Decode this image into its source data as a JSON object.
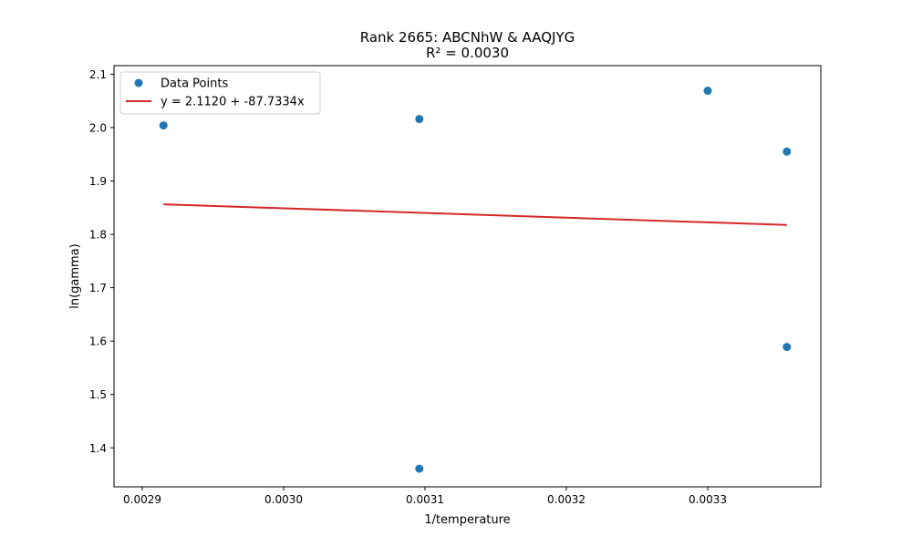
{
  "chart_data": {
    "type": "scatter",
    "title": "Rank 2665: ABCNhW & AAQJYG",
    "subtitle": "R² = 0.0030",
    "xlabel": "1/temperature",
    "ylabel": "ln(gamma)",
    "xlim": [
      0.00288,
      0.00338
    ],
    "ylim": [
      1.327,
      2.116
    ],
    "xticks": [
      0.0029,
      0.003,
      0.0031,
      0.0032,
      0.0033
    ],
    "xtick_labels": [
      "0.0029",
      "0.0030",
      "0.0031",
      "0.0032",
      "0.0033"
    ],
    "yticks": [
      1.4,
      1.5,
      1.6,
      1.7,
      1.8,
      1.9,
      2.0,
      2.1
    ],
    "ytick_labels": [
      "1.4",
      "1.5",
      "1.6",
      "1.7",
      "1.8",
      "1.9",
      "2.0",
      "2.1"
    ],
    "grid": false,
    "legend_position": "top-left",
    "series": [
      {
        "name": "Data Points",
        "kind": "scatter",
        "color": "#1f77b4",
        "x": [
          0.002915,
          0.003096,
          0.003096,
          0.0033,
          0.003356,
          0.003356
        ],
        "y": [
          2.004,
          2.016,
          1.361,
          2.069,
          1.955,
          1.589
        ]
      },
      {
        "name": "y = 2.1120 + -87.7334x",
        "kind": "line",
        "color": "#d62728",
        "intercept": 2.112,
        "slope": -87.7334,
        "x_range": [
          0.002915,
          0.003356
        ]
      }
    ]
  }
}
